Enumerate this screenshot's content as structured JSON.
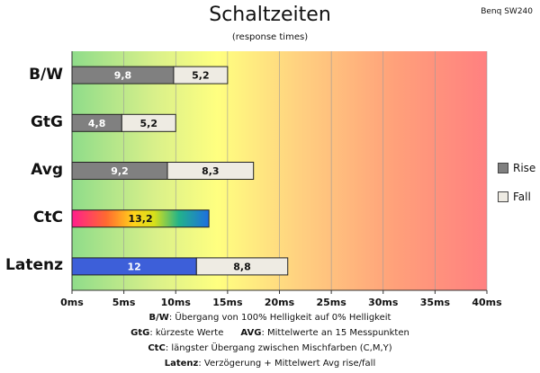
{
  "title": "Schaltzeiten",
  "subtitle": "(response times)",
  "brand": "Benq SW240",
  "colors": {
    "rise": "#808080",
    "fall": "#eeebe3",
    "latency_rise": "#3d5fd9"
  },
  "legend": [
    {
      "label": "Rise",
      "color": "#808080"
    },
    {
      "label": "Fall",
      "color": "#eeebe3"
    }
  ],
  "notes": [
    {
      "b1": "B/W",
      "t1": ":  Übergang von 100% Helligkeit auf 0% Helligkeit"
    },
    {
      "b1": "GtG",
      "t1": ": kürzeste  Werte",
      "b2": "AVG",
      "t2": ": Mittelwerte  an 15 Messpunkten"
    },
    {
      "b1": "CtC",
      "t1": ": längster Übergang  zwischen Mischfarben  (C,M,Y)"
    },
    {
      "b1": "Latenz",
      "t1": ": Verzögerung  + Mittelwert Avg rise/fall"
    }
  ],
  "chart_data": {
    "type": "bar",
    "orientation": "horizontal",
    "stacked": true,
    "categories": [
      "B/W",
      "GtG",
      "Avg",
      "CtC",
      "Latenz"
    ],
    "series": [
      {
        "name": "Rise",
        "values": [
          9.8,
          4.8,
          9.2,
          13.2,
          12
        ],
        "labels": [
          "9,8",
          "4,8",
          "9,2",
          "13,2",
          "12"
        ]
      },
      {
        "name": "Fall",
        "values": [
          5.2,
          5.2,
          8.3,
          null,
          8.8
        ],
        "labels": [
          "5,2",
          "5,2",
          "8,3",
          "",
          "8,8"
        ]
      }
    ],
    "x_ticks": [
      "0ms",
      "5ms",
      "10ms",
      "15ms",
      "20ms",
      "25ms",
      "30ms",
      "35ms",
      "40ms"
    ],
    "xlim": [
      0,
      40
    ],
    "background": "gradient green-yellow-red",
    "legend_position": "right"
  }
}
